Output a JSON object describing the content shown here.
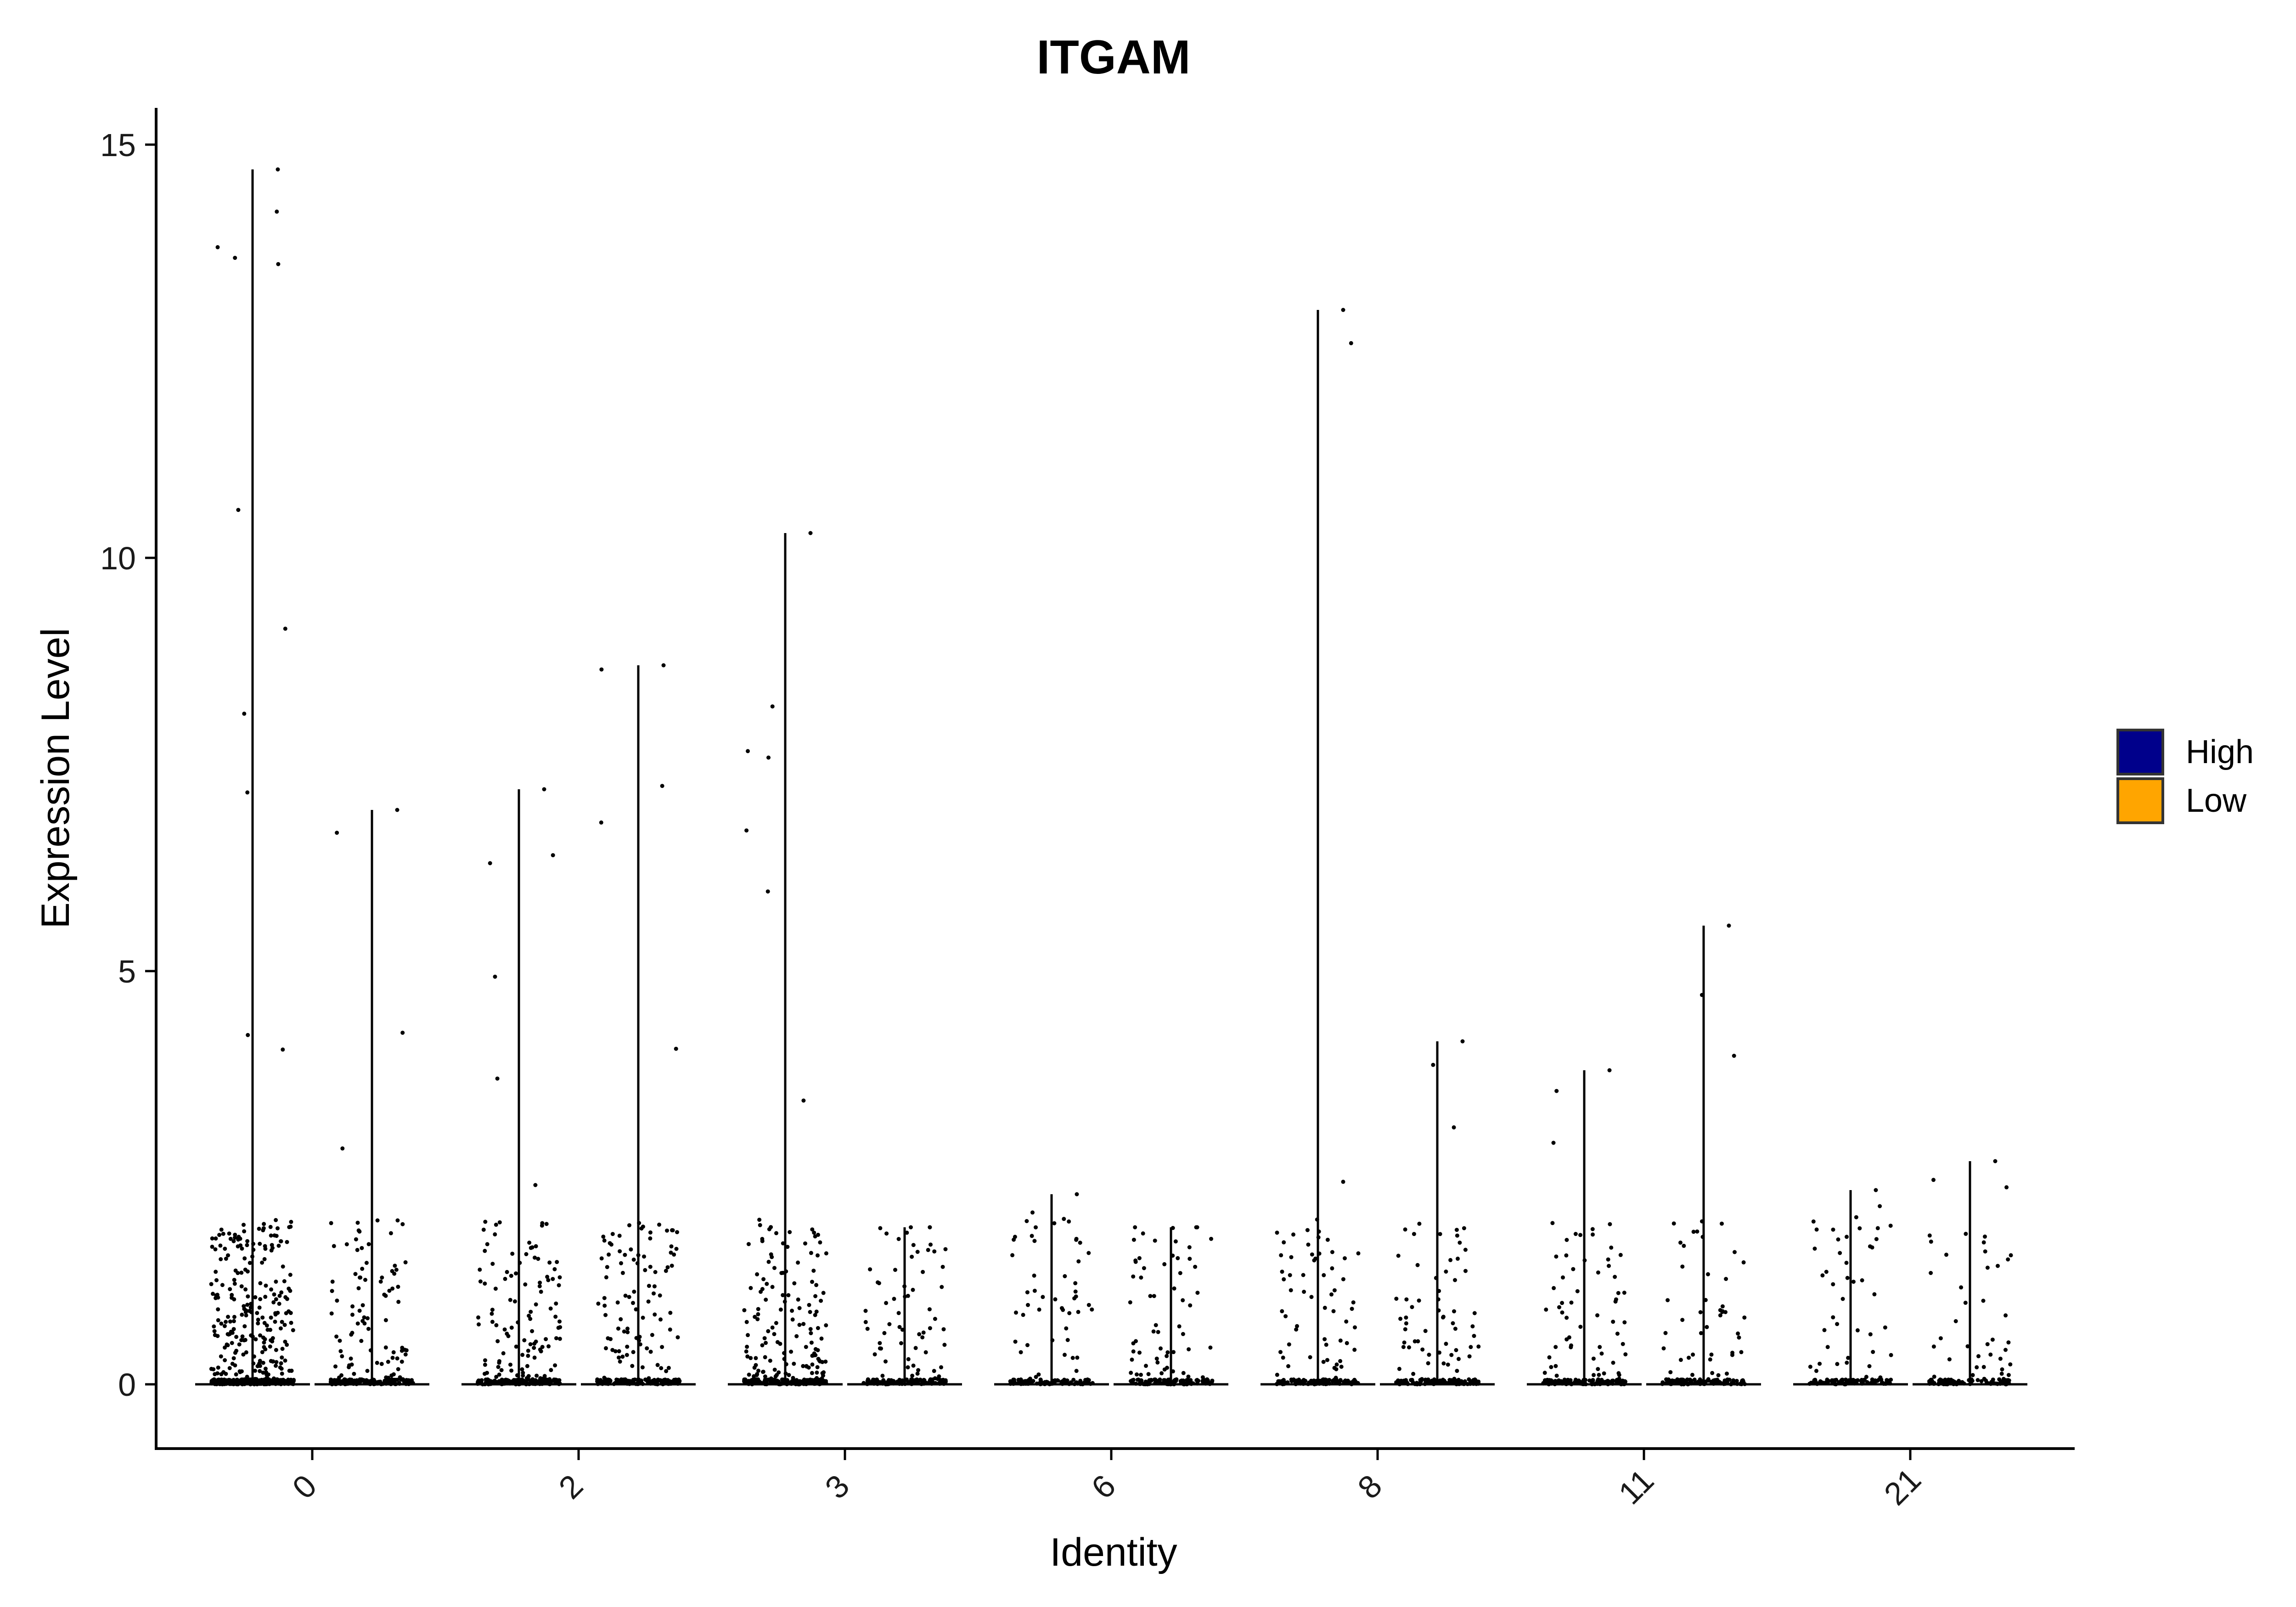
{
  "chart_data": {
    "type": "violin",
    "title": "ITGAM",
    "xlabel": "Identity",
    "ylabel": "Expression Level",
    "ylim": [
      -0.75,
      15.5
    ],
    "yticks": [
      0,
      5,
      10,
      15
    ],
    "categories": [
      "0",
      "2",
      "3",
      "6",
      "8",
      "11",
      "21"
    ],
    "legend": {
      "position": "right",
      "entries": [
        {
          "name": "High",
          "color": "#00008B"
        },
        {
          "name": "Low",
          "color": "#FFA500"
        }
      ]
    },
    "series": [
      {
        "name": "High",
        "max_values": [
          14.7,
          7.2,
          10.3,
          2.3,
          13.0,
          3.8,
          2.35
        ],
        "relative_point_density": [
          1.0,
          0.45,
          0.55,
          0.15,
          0.2,
          0.2,
          0.12
        ]
      },
      {
        "name": "Low",
        "max_values": [
          6.95,
          8.7,
          1.9,
          1.9,
          4.15,
          5.55,
          2.7
        ],
        "relative_point_density": [
          0.3,
          0.35,
          0.2,
          0.18,
          0.2,
          0.15,
          0.1
        ]
      }
    ],
    "points_color": "#000000"
  }
}
